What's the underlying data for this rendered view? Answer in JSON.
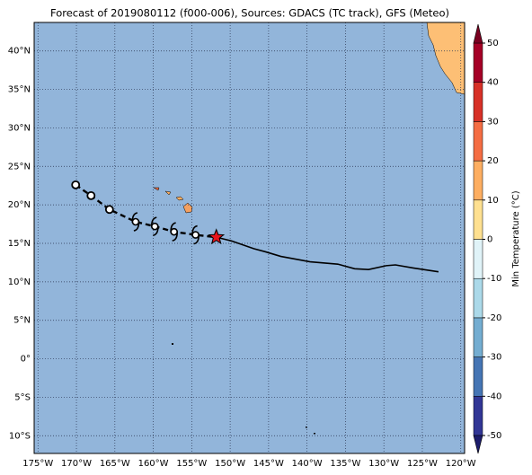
{
  "chart_data": {
    "type": "track-map",
    "title": "Forecast of 2019080112 (f000-006), Sources: GDACS (TC track), GFS (Meteo)",
    "xlim": [
      -175.5,
      -119.5
    ],
    "ylim": [
      -12.3,
      43.7
    ],
    "xticks": [
      {
        "value": -175,
        "label": "175°W"
      },
      {
        "value": -170,
        "label": "170°W"
      },
      {
        "value": -165,
        "label": "165°W"
      },
      {
        "value": -160,
        "label": "160°W"
      },
      {
        "value": -155,
        "label": "155°W"
      },
      {
        "value": -150,
        "label": "150°W"
      },
      {
        "value": -145,
        "label": "145°W"
      },
      {
        "value": -140,
        "label": "140°W"
      },
      {
        "value": -135,
        "label": "135°W"
      },
      {
        "value": -130,
        "label": "130°W"
      },
      {
        "value": -125,
        "label": "125°W"
      },
      {
        "value": -120,
        "label": "120°W"
      }
    ],
    "yticks": [
      {
        "value": 40,
        "label": "40°N"
      },
      {
        "value": 35,
        "label": "35°N"
      },
      {
        "value": 30,
        "label": "30°N"
      },
      {
        "value": 25,
        "label": "25°N"
      },
      {
        "value": 20,
        "label": "20°N"
      },
      {
        "value": 15,
        "label": "15°N"
      },
      {
        "value": 10,
        "label": "10°N"
      },
      {
        "value": 5,
        "label": "5°N"
      },
      {
        "value": 0,
        "label": "0°"
      },
      {
        "value": -5,
        "label": "5°S"
      },
      {
        "value": -10,
        "label": "10°S"
      }
    ],
    "grid": true,
    "ocean_color": "#92b5da",
    "past_track": {
      "lon": [
        -170.1,
        -168.1,
        -165.7,
        -162.3,
        -159.8,
        -157.3,
        -154.5,
        -151.8
      ],
      "lat": [
        22.6,
        21.2,
        19.4,
        17.8,
        17.2,
        16.5,
        16.1,
        15.8
      ],
      "markers": [
        "circle",
        "circle",
        "circle",
        "cyclone",
        "cyclone",
        "cyclone",
        "cyclone",
        "star"
      ]
    },
    "forecast_track": {
      "lon": [
        -151.8,
        -149.8,
        -146.9,
        -145.4,
        -143.4,
        -139.6,
        -136.0,
        -133.8,
        -132.0,
        -129.7,
        -128.5,
        -126.2,
        -122.9
      ],
      "lat": [
        15.8,
        15.3,
        14.3,
        13.9,
        13.3,
        12.6,
        12.3,
        11.7,
        11.6,
        12.1,
        12.2,
        11.8,
        11.3
      ]
    },
    "colorbar": {
      "label": "Min Temperature (°C)",
      "clim": [
        -50,
        50
      ],
      "ticks": [
        -50,
        -40,
        -30,
        -20,
        -10,
        0,
        10,
        20,
        30,
        40,
        50
      ],
      "colors": [
        "#313695",
        "#4575b4",
        "#74add1",
        "#abd9e9",
        "#e0f3f8",
        "#fee090",
        "#fdae61",
        "#f46d43",
        "#d73027",
        "#a50026"
      ],
      "extend_colors": [
        "#1c1c6b",
        "#7a0020"
      ]
    }
  }
}
